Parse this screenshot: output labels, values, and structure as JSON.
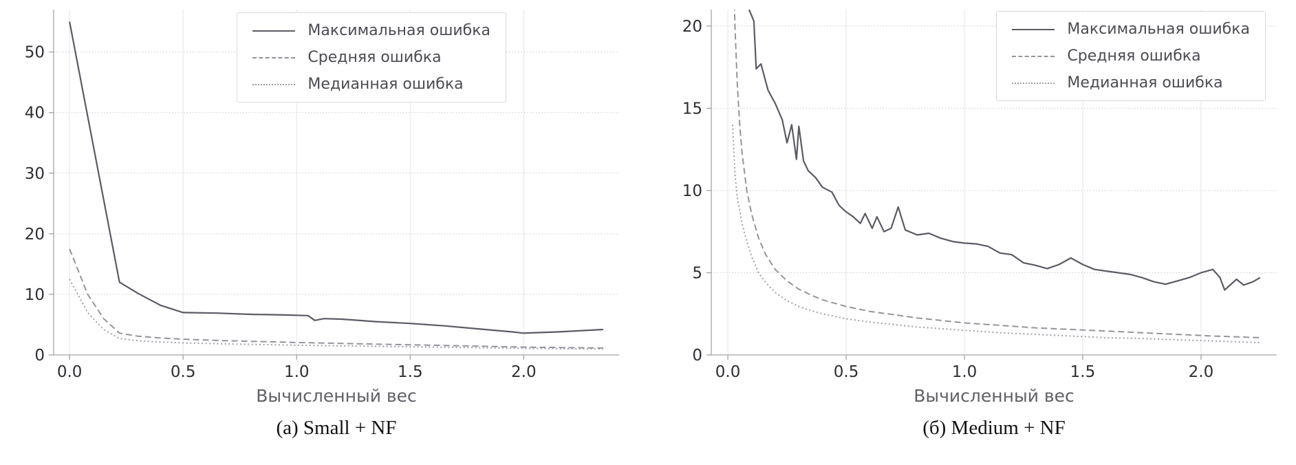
{
  "page": {
    "background": "#ffffff"
  },
  "chart_data": [
    {
      "type": "line",
      "caption": "(а) Small + NF",
      "xlabel": "Вычисленный вес",
      "xlim": [
        -0.07,
        2.42
      ],
      "ylim": [
        0,
        57
      ],
      "xticks": [
        0,
        0.5,
        1.0,
        1.5,
        2.0
      ],
      "xtick_labels": [
        "0.0",
        "0.5",
        "1.0",
        "1.5",
        "2.0"
      ],
      "yticks": [
        0,
        10,
        20,
        30,
        40,
        50
      ],
      "ytick_labels": [
        "0",
        "10",
        "20",
        "30",
        "40",
        "50"
      ],
      "grid": true,
      "legend_position": "upper center-right",
      "series": [
        {
          "name": "Максимальная ошибка",
          "style": "solid",
          "color": "#5a5a64",
          "points": [
            [
              0,
              55
            ],
            [
              0.22,
              12
            ],
            [
              0.3,
              10.2
            ],
            [
              0.4,
              8.2
            ],
            [
              0.5,
              7.0
            ],
            [
              0.65,
              6.9
            ],
            [
              0.8,
              6.7
            ],
            [
              0.95,
              6.6
            ],
            [
              1.05,
              6.5
            ],
            [
              1.08,
              5.7
            ],
            [
              1.12,
              6.0
            ],
            [
              1.2,
              5.9
            ],
            [
              1.35,
              5.5
            ],
            [
              1.5,
              5.2
            ],
            [
              1.65,
              4.8
            ],
            [
              1.8,
              4.3
            ],
            [
              1.95,
              3.8
            ],
            [
              2.0,
              3.6
            ],
            [
              2.15,
              3.8
            ],
            [
              2.35,
              4.2
            ]
          ]
        },
        {
          "name": "Средняя ошибка",
          "style": "dashed",
          "color": "#94949c",
          "points": [
            [
              0,
              17.5
            ],
            [
              0.08,
              10
            ],
            [
              0.15,
              6
            ],
            [
              0.22,
              3.6
            ],
            [
              0.3,
              3.1
            ],
            [
              0.4,
              2.8
            ],
            [
              0.5,
              2.6
            ],
            [
              0.65,
              2.4
            ],
            [
              0.8,
              2.25
            ],
            [
              1.0,
              2.05
            ],
            [
              1.2,
              1.9
            ],
            [
              1.4,
              1.75
            ],
            [
              1.6,
              1.6
            ],
            [
              1.8,
              1.45
            ],
            [
              2.0,
              1.3
            ],
            [
              2.2,
              1.2
            ],
            [
              2.35,
              1.15
            ]
          ]
        },
        {
          "name": "Медианная ошибка",
          "style": "dotted",
          "color": "#9e9ea6",
          "points": [
            [
              0,
              12.5
            ],
            [
              0.08,
              7
            ],
            [
              0.15,
              4.2
            ],
            [
              0.22,
              2.7
            ],
            [
              0.3,
              2.35
            ],
            [
              0.4,
              2.15
            ],
            [
              0.5,
              2.0
            ],
            [
              0.65,
              1.85
            ],
            [
              0.8,
              1.75
            ],
            [
              1.0,
              1.6
            ],
            [
              1.2,
              1.5
            ],
            [
              1.4,
              1.4
            ],
            [
              1.6,
              1.3
            ],
            [
              1.8,
              1.2
            ],
            [
              2.0,
              1.1
            ],
            [
              2.2,
              1.02
            ],
            [
              2.35,
              0.98
            ]
          ]
        }
      ]
    },
    {
      "type": "line",
      "caption": "(б) Medium + NF",
      "xlabel": "Вычисленный вес",
      "xlim": [
        -0.07,
        2.32
      ],
      "ylim": [
        0,
        21
      ],
      "xticks": [
        0,
        0.5,
        1.0,
        1.5,
        2.0
      ],
      "xtick_labels": [
        "0.0",
        "0.5",
        "1.0",
        "1.5",
        "2.0"
      ],
      "yticks": [
        0,
        5,
        10,
        15,
        20
      ],
      "ytick_labels": [
        "0",
        "5",
        "10",
        "15",
        "20"
      ],
      "grid": true,
      "legend_position": "upper right",
      "series": [
        {
          "name": "Максимальная ошибка",
          "style": "solid",
          "color": "#5a5a64",
          "points": [
            [
              0.05,
              30
            ],
            [
              0.09,
              21
            ],
            [
              0.11,
              20.3
            ],
            [
              0.12,
              17.4
            ],
            [
              0.14,
              17.7
            ],
            [
              0.17,
              16.1
            ],
            [
              0.2,
              15.3
            ],
            [
              0.23,
              14.3
            ],
            [
              0.25,
              12.9
            ],
            [
              0.27,
              14.0
            ],
            [
              0.29,
              11.9
            ],
            [
              0.3,
              13.9
            ],
            [
              0.32,
              11.8
            ],
            [
              0.34,
              11.2
            ],
            [
              0.37,
              10.8
            ],
            [
              0.4,
              10.2
            ],
            [
              0.44,
              9.9
            ],
            [
              0.47,
              9.1
            ],
            [
              0.5,
              8.7
            ],
            [
              0.53,
              8.4
            ],
            [
              0.56,
              8.0
            ],
            [
              0.58,
              8.6
            ],
            [
              0.61,
              7.7
            ],
            [
              0.63,
              8.4
            ],
            [
              0.66,
              7.5
            ],
            [
              0.69,
              7.7
            ],
            [
              0.72,
              9.0
            ],
            [
              0.75,
              7.6
            ],
            [
              0.8,
              7.3
            ],
            [
              0.85,
              7.4
            ],
            [
              0.9,
              7.1
            ],
            [
              0.95,
              6.9
            ],
            [
              1.0,
              6.8
            ],
            [
              1.05,
              6.75
            ],
            [
              1.1,
              6.6
            ],
            [
              1.15,
              6.2
            ],
            [
              1.2,
              6.1
            ],
            [
              1.25,
              5.6
            ],
            [
              1.3,
              5.45
            ],
            [
              1.35,
              5.25
            ],
            [
              1.4,
              5.5
            ],
            [
              1.45,
              5.9
            ],
            [
              1.5,
              5.5
            ],
            [
              1.55,
              5.2
            ],
            [
              1.6,
              5.1
            ],
            [
              1.65,
              5.0
            ],
            [
              1.7,
              4.9
            ],
            [
              1.75,
              4.7
            ],
            [
              1.8,
              4.45
            ],
            [
              1.85,
              4.3
            ],
            [
              1.9,
              4.5
            ],
            [
              1.95,
              4.7
            ],
            [
              2.0,
              5.0
            ],
            [
              2.05,
              5.2
            ],
            [
              2.08,
              4.7
            ],
            [
              2.1,
              3.95
            ],
            [
              2.15,
              4.6
            ],
            [
              2.18,
              4.25
            ],
            [
              2.22,
              4.45
            ],
            [
              2.25,
              4.7
            ]
          ]
        },
        {
          "name": "Средняя ошибка",
          "style": "dashed",
          "color": "#94949c",
          "points": [
            [
              0.02,
              26
            ],
            [
              0.03,
              20
            ],
            [
              0.04,
              16.5
            ],
            [
              0.05,
              14
            ],
            [
              0.06,
              12.3
            ],
            [
              0.08,
              10
            ],
            [
              0.1,
              8.6
            ],
            [
              0.13,
              7.1
            ],
            [
              0.16,
              6.1
            ],
            [
              0.2,
              5.2
            ],
            [
              0.25,
              4.5
            ],
            [
              0.3,
              4.0
            ],
            [
              0.35,
              3.65
            ],
            [
              0.4,
              3.35
            ],
            [
              0.5,
              2.95
            ],
            [
              0.6,
              2.65
            ],
            [
              0.7,
              2.45
            ],
            [
              0.8,
              2.25
            ],
            [
              0.9,
              2.1
            ],
            [
              1.0,
              1.95
            ],
            [
              1.15,
              1.8
            ],
            [
              1.3,
              1.65
            ],
            [
              1.45,
              1.55
            ],
            [
              1.6,
              1.45
            ],
            [
              1.75,
              1.35
            ],
            [
              1.9,
              1.25
            ],
            [
              2.05,
              1.15
            ],
            [
              2.25,
              1.05
            ]
          ]
        },
        {
          "name": "Медианная ошибка",
          "style": "dotted",
          "color": "#9e9ea6",
          "points": [
            [
              0.02,
              14
            ],
            [
              0.03,
              11
            ],
            [
              0.04,
              9.6
            ],
            [
              0.06,
              8.0
            ],
            [
              0.08,
              6.9
            ],
            [
              0.1,
              6.0
            ],
            [
              0.13,
              5.0
            ],
            [
              0.16,
              4.4
            ],
            [
              0.2,
              3.8
            ],
            [
              0.25,
              3.3
            ],
            [
              0.3,
              2.95
            ],
            [
              0.35,
              2.7
            ],
            [
              0.4,
              2.5
            ],
            [
              0.5,
              2.2
            ],
            [
              0.6,
              2.0
            ],
            [
              0.7,
              1.85
            ],
            [
              0.8,
              1.7
            ],
            [
              0.9,
              1.6
            ],
            [
              1.0,
              1.5
            ],
            [
              1.15,
              1.35
            ],
            [
              1.3,
              1.25
            ],
            [
              1.45,
              1.15
            ],
            [
              1.6,
              1.05
            ],
            [
              1.75,
              1.0
            ],
            [
              1.9,
              0.92
            ],
            [
              2.05,
              0.85
            ],
            [
              2.25,
              0.75
            ]
          ]
        }
      ]
    }
  ]
}
